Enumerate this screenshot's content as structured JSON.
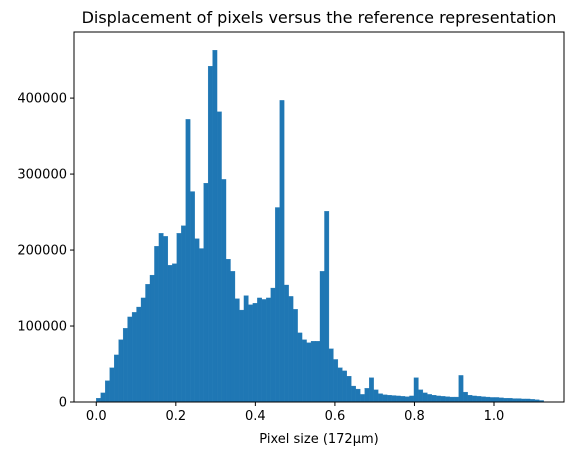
{
  "chart_data": {
    "type": "bar",
    "title": "Displacement of pixels versus the reference representation",
    "xlabel": "Pixel size (172µm)",
    "ylabel": "",
    "xlim": [
      -0.056,
      1.176
    ],
    "ylim": [
      0,
      487000
    ],
    "grid": false,
    "bar_color": "#1f77b4",
    "bin_width": 0.01125,
    "x_ticks": [
      0.0,
      0.2,
      0.4,
      0.6,
      0.8,
      1.0
    ],
    "x_tick_labels": [
      "0.0",
      "0.2",
      "0.4",
      "0.6",
      "0.8",
      "1.0"
    ],
    "y_ticks": [
      0,
      100000,
      200000,
      300000,
      400000
    ],
    "y_tick_labels": [
      "0",
      "100000",
      "200000",
      "300000",
      "400000"
    ],
    "bins": [
      0.0,
      0.01125,
      0.0225,
      0.03375,
      0.045,
      0.05625,
      0.0675,
      0.07875,
      0.09,
      0.10125,
      0.1125,
      0.12375,
      0.135,
      0.14625,
      0.1575,
      0.16875,
      0.18,
      0.19125,
      0.2025,
      0.21375,
      0.225,
      0.23625,
      0.2475,
      0.25875,
      0.27,
      0.28125,
      0.2925,
      0.30375,
      0.315,
      0.32625,
      0.3375,
      0.34875,
      0.36,
      0.37125,
      0.3825,
      0.39375,
      0.405,
      0.41625,
      0.4275,
      0.43875,
      0.45,
      0.46125,
      0.4725,
      0.48375,
      0.495,
      0.50625,
      0.5175,
      0.52875,
      0.54,
      0.55125,
      0.5625,
      0.57375,
      0.585,
      0.59625,
      0.6075,
      0.61875,
      0.63,
      0.64125,
      0.6525,
      0.66375,
      0.675,
      0.68625,
      0.6975,
      0.70875,
      0.72,
      0.73125,
      0.7425,
      0.75375,
      0.765,
      0.77625,
      0.7875,
      0.79875,
      0.81,
      0.82125,
      0.8325,
      0.84375,
      0.855,
      0.86625,
      0.8775,
      0.88875,
      0.9,
      0.91125,
      0.9225,
      0.93375,
      0.945,
      0.95625,
      0.9675,
      0.97875,
      0.99,
      1.00125,
      1.0125,
      1.02375,
      1.035,
      1.04625,
      1.0575,
      1.06875,
      1.08,
      1.09125,
      1.1025,
      1.11375
    ],
    "values": [
      5000,
      12000,
      28000,
      45000,
      62000,
      82000,
      97000,
      112000,
      118000,
      125000,
      137000,
      155000,
      167000,
      205000,
      222000,
      218000,
      180000,
      182000,
      222000,
      232000,
      372000,
      277000,
      215000,
      202000,
      288000,
      442000,
      463000,
      382000,
      293000,
      188000,
      172000,
      136000,
      121000,
      140000,
      128000,
      130000,
      137000,
      135000,
      137000,
      150000,
      256000,
      397000,
      154000,
      139000,
      122000,
      91000,
      82000,
      78000,
      80000,
      80000,
      172000,
      251000,
      70000,
      56000,
      45000,
      41000,
      34000,
      21000,
      17000,
      10000,
      18000,
      32000,
      16000,
      11000,
      9500,
      9000,
      8500,
      8000,
      7500,
      7000,
      8000,
      32000,
      16000,
      12000,
      10000,
      9000,
      8000,
      7500,
      7000,
      6500,
      6500,
      35000,
      13000,
      9000,
      8000,
      7500,
      7000,
      6500,
      6000,
      6000,
      5500,
      5000,
      5000,
      4500,
      4500,
      4000,
      4000,
      3500,
      3000,
      2000
    ]
  }
}
